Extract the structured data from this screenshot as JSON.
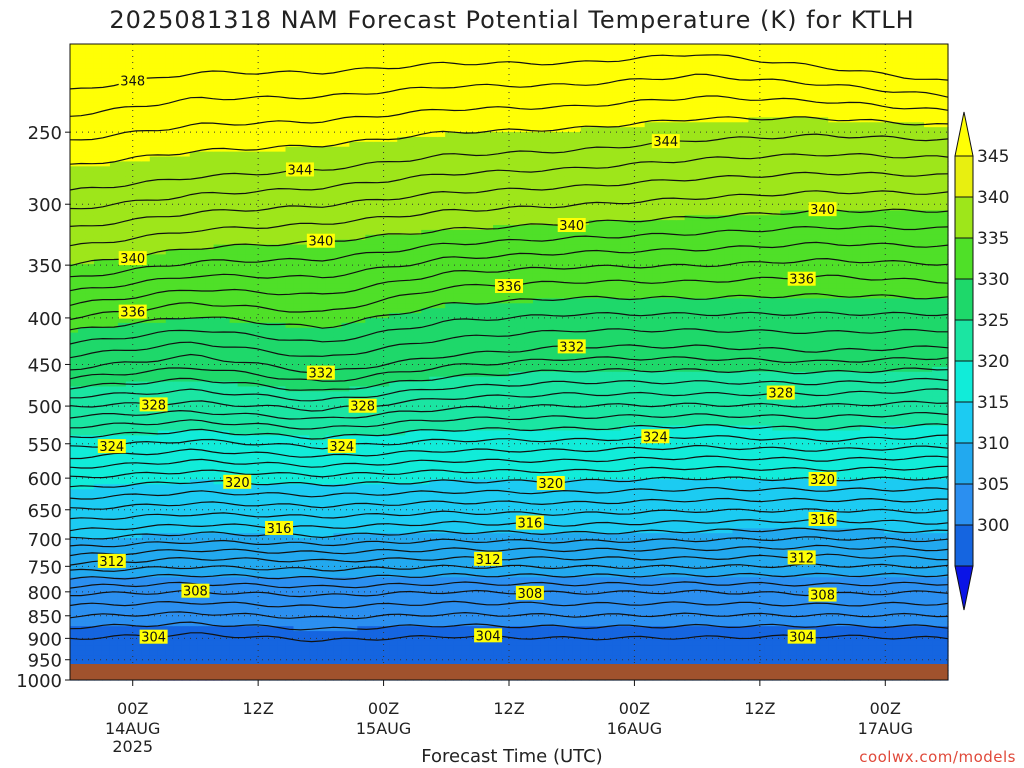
{
  "title": "2025081318 NAM Forecast Potential Temperature (K) for KTLH",
  "credit": "coolwx.com/models",
  "chart_data": {
    "type": "heatmap",
    "title": "2025081318 NAM Forecast Potential Temperature (K) for KTLH",
    "xlabel": "Forecast Time (UTC)",
    "ylabel": "",
    "y_scale": "log-pressure",
    "y_ticks": [
      250,
      300,
      350,
      400,
      450,
      500,
      550,
      600,
      650,
      700,
      750,
      800,
      850,
      900,
      950,
      1000
    ],
    "ylim": [
      1000,
      200
    ],
    "x_ticks": [
      {
        "label": "00Z",
        "sub": [
          "14AUG",
          "2025"
        ],
        "hour": 6
      },
      {
        "label": "12Z",
        "sub": [],
        "hour": 18
      },
      {
        "label": "00Z",
        "sub": [
          "15AUG"
        ],
        "hour": 30
      },
      {
        "label": "12Z",
        "sub": [],
        "hour": 42
      },
      {
        "label": "00Z",
        "sub": [
          "16AUG"
        ],
        "hour": 54
      },
      {
        "label": "12Z",
        "sub": [],
        "hour": 66
      },
      {
        "label": "00Z",
        "sub": [
          "17AUG"
        ],
        "hour": 78
      }
    ],
    "xlim_hours": [
      0,
      84
    ],
    "colorbar": {
      "levels": [
        300,
        305,
        310,
        315,
        320,
        325,
        330,
        335,
        340,
        345
      ],
      "colors": [
        "#0a14e6",
        "#1565e0",
        "#2b8ff0",
        "#22a9ef",
        "#1ccbf2",
        "#11ecd9",
        "#1be5a2",
        "#1ed86a",
        "#4fe028",
        "#9ee61a",
        "#e8ef10",
        "#ffff05"
      ]
    },
    "series": [
      {
        "name": "304",
        "points": [
          [
            0,
            900
          ],
          [
            12,
            890
          ],
          [
            24,
            905
          ],
          [
            36,
            895
          ],
          [
            48,
            900
          ],
          [
            60,
            898
          ],
          [
            72,
            895
          ],
          [
            84,
            900
          ]
        ]
      },
      {
        "name": "308",
        "points": [
          [
            0,
            805
          ],
          [
            12,
            800
          ],
          [
            24,
            808
          ],
          [
            36,
            800
          ],
          [
            48,
            802
          ],
          [
            60,
            800
          ],
          [
            72,
            805
          ],
          [
            84,
            800
          ]
        ]
      },
      {
        "name": "312",
        "points": [
          [
            0,
            745
          ],
          [
            12,
            735
          ],
          [
            24,
            740
          ],
          [
            36,
            735
          ],
          [
            48,
            735
          ],
          [
            60,
            735
          ],
          [
            72,
            730
          ],
          [
            84,
            735
          ]
        ]
      },
      {
        "name": "316",
        "points": [
          [
            0,
            685
          ],
          [
            12,
            675
          ],
          [
            24,
            680
          ],
          [
            36,
            672
          ],
          [
            48,
            675
          ],
          [
            60,
            670
          ],
          [
            72,
            668
          ],
          [
            84,
            672
          ]
        ]
      },
      {
        "name": "320",
        "points": [
          [
            0,
            615
          ],
          [
            12,
            605
          ],
          [
            24,
            610
          ],
          [
            36,
            605
          ],
          [
            48,
            605
          ],
          [
            60,
            600
          ],
          [
            72,
            602
          ],
          [
            84,
            600
          ]
        ]
      },
      {
        "name": "324",
        "points": [
          [
            0,
            555
          ],
          [
            12,
            545
          ],
          [
            24,
            555
          ],
          [
            36,
            545
          ],
          [
            48,
            545
          ],
          [
            60,
            540
          ],
          [
            72,
            545
          ],
          [
            84,
            540
          ]
        ]
      },
      {
        "name": "328",
        "points": [
          [
            0,
            500
          ],
          [
            12,
            495
          ],
          [
            24,
            505
          ],
          [
            36,
            490
          ],
          [
            48,
            485
          ],
          [
            60,
            485
          ],
          [
            72,
            485
          ],
          [
            84,
            480
          ]
        ]
      },
      {
        "name": "332",
        "points": [
          [
            0,
            455
          ],
          [
            12,
            440
          ],
          [
            24,
            460
          ],
          [
            36,
            440
          ],
          [
            48,
            430
          ],
          [
            60,
            430
          ],
          [
            72,
            435
          ],
          [
            84,
            430
          ]
        ]
      },
      {
        "name": "336",
        "points": [
          [
            0,
            400
          ],
          [
            12,
            385
          ],
          [
            24,
            395
          ],
          [
            36,
            370
          ],
          [
            48,
            365
          ],
          [
            60,
            365
          ],
          [
            72,
            360
          ],
          [
            84,
            365
          ]
        ]
      },
      {
        "name": "340",
        "points": [
          [
            0,
            350
          ],
          [
            12,
            335
          ],
          [
            24,
            330
          ],
          [
            36,
            320
          ],
          [
            48,
            315
          ],
          [
            60,
            310
          ],
          [
            72,
            305
          ],
          [
            84,
            305
          ]
        ]
      },
      {
        "name": "344",
        "points": [
          [
            0,
            290
          ],
          [
            12,
            280
          ],
          [
            24,
            275
          ],
          [
            36,
            265
          ],
          [
            48,
            262
          ],
          [
            60,
            255
          ],
          [
            72,
            252
          ],
          [
            84,
            255
          ]
        ]
      },
      {
        "name": "348",
        "points": [
          [
            0,
            225
          ],
          [
            12,
            215
          ],
          [
            24,
            215
          ],
          [
            36,
            210
          ],
          [
            48,
            210
          ],
          [
            60,
            205
          ],
          [
            72,
            212
          ],
          [
            84,
            220
          ]
        ]
      }
    ],
    "grid": true
  }
}
